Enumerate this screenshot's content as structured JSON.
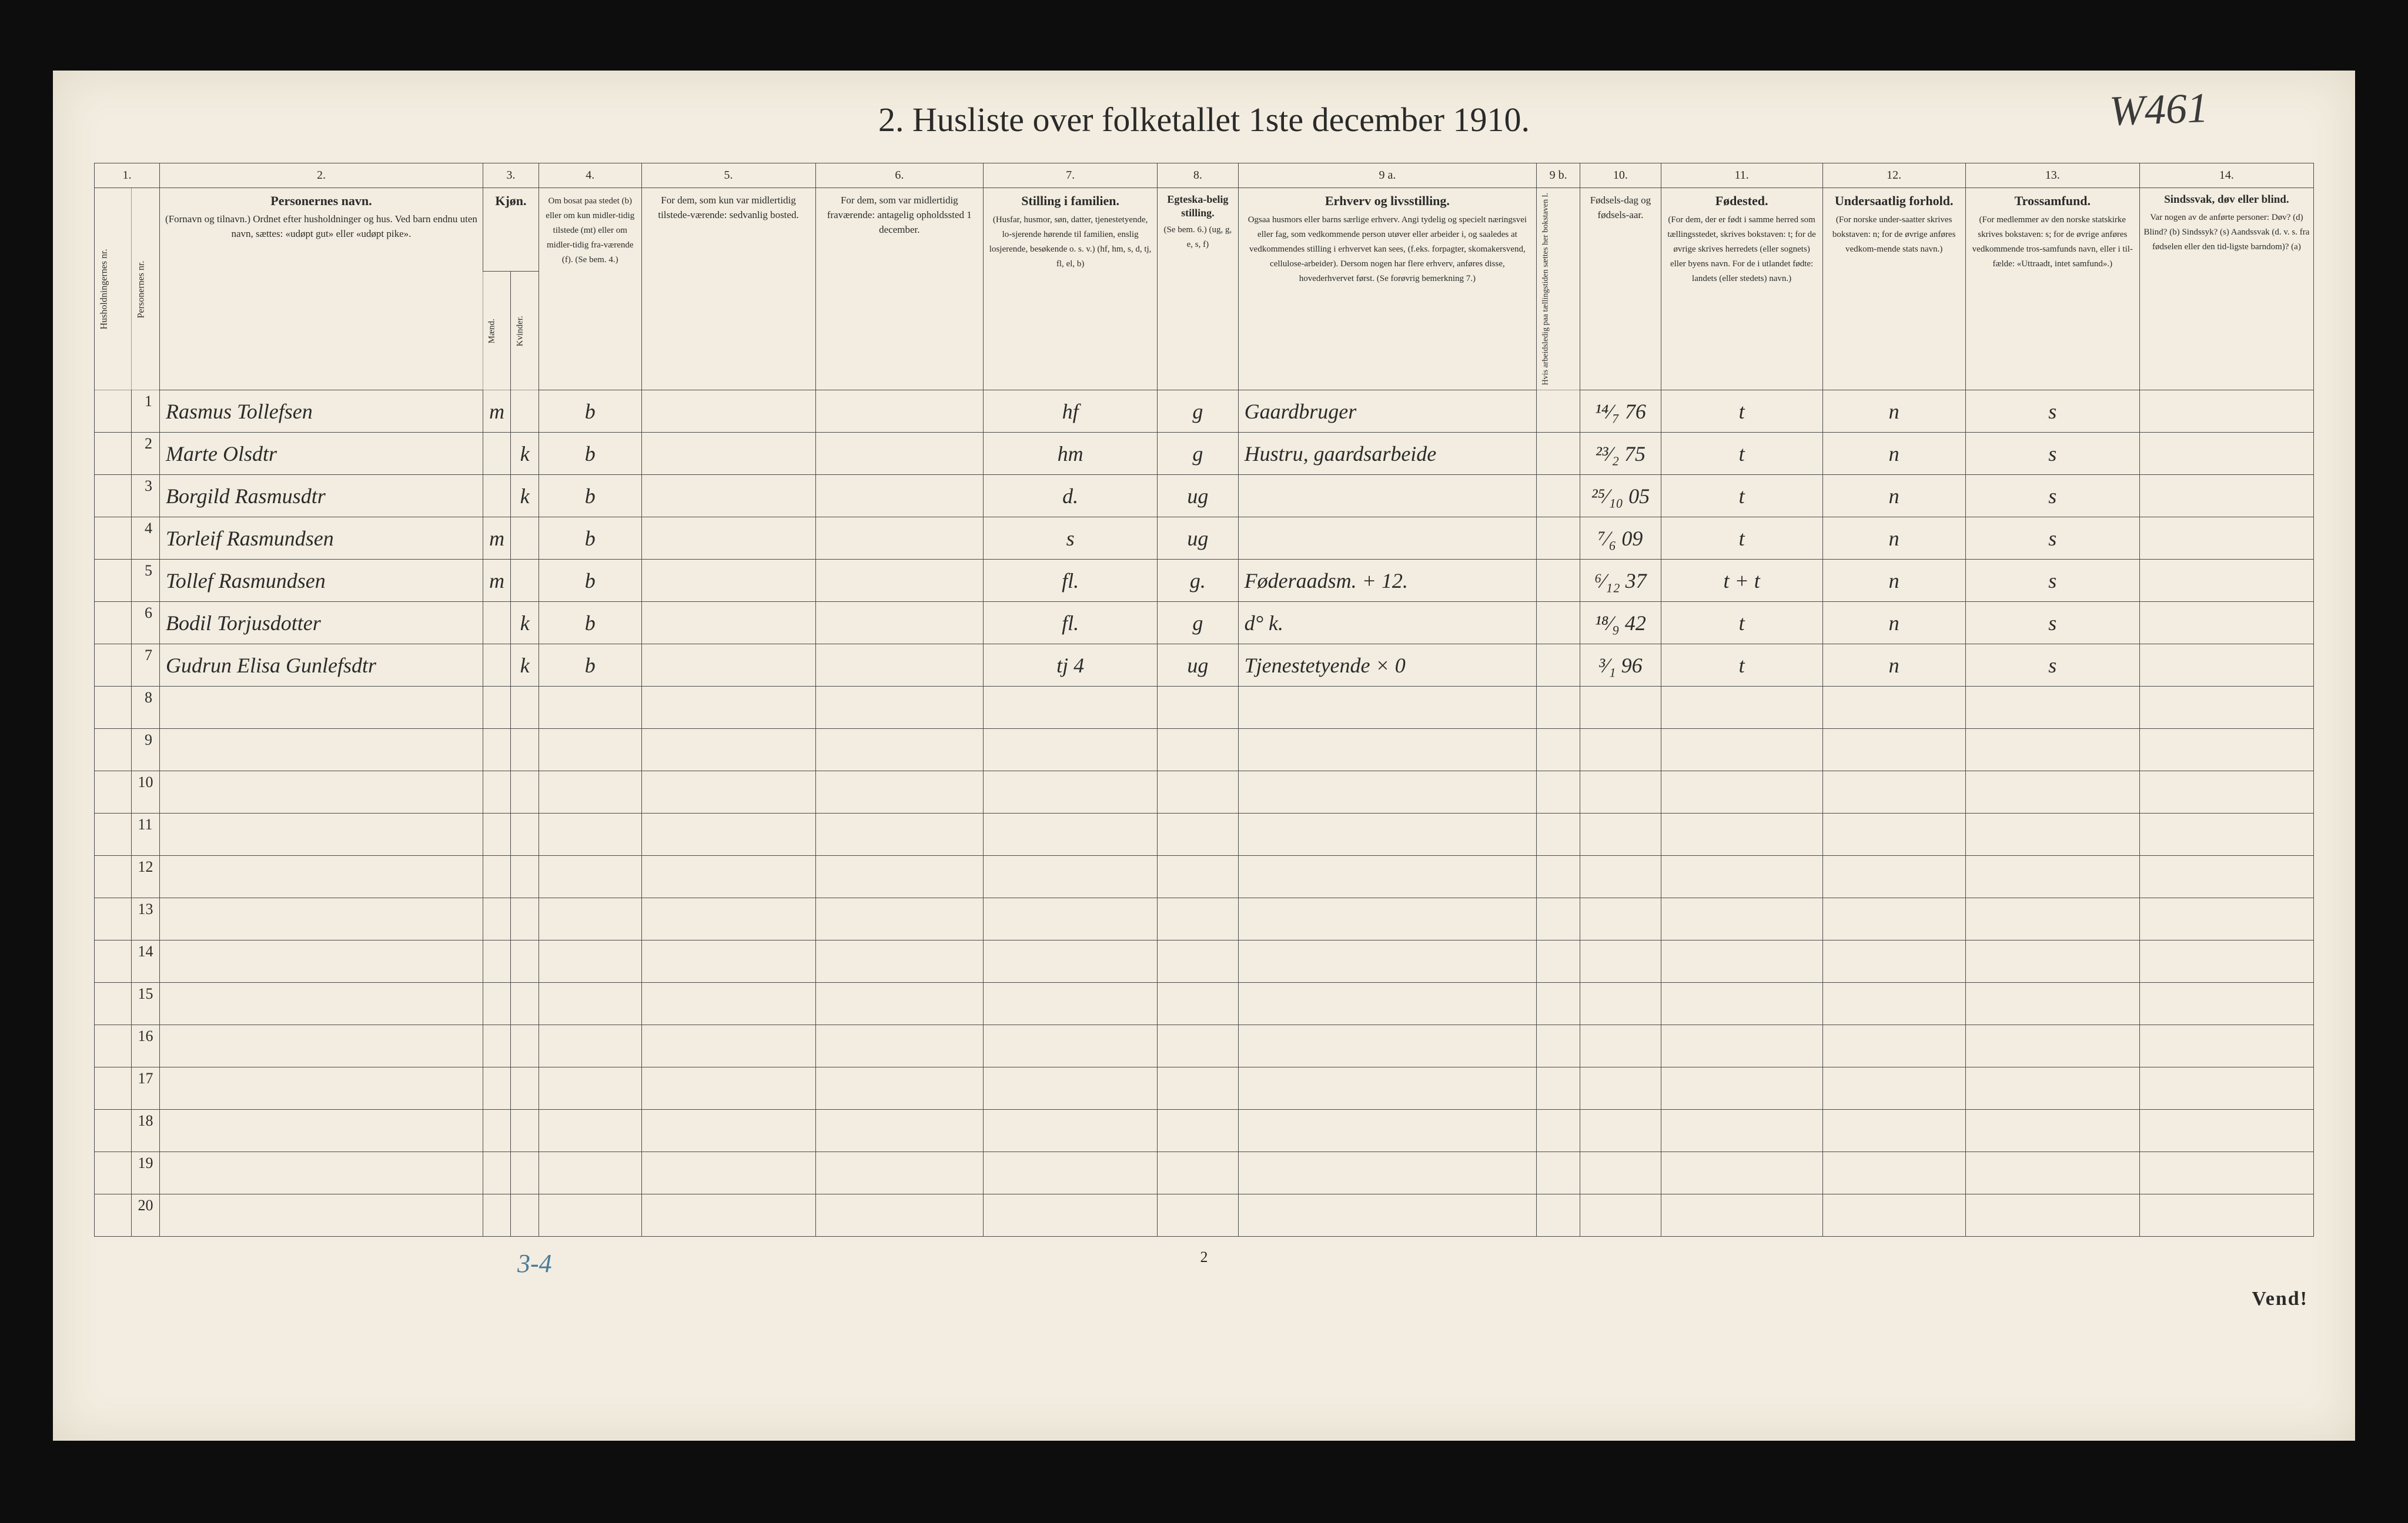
{
  "page": {
    "title": "2.  Husliste over folketallet 1ste december 1910.",
    "handwritten_ref": "W461",
    "footer_left_note": "3-4",
    "footer_pagenum": "2",
    "footer_vend": "Vend!",
    "background_color": "#f2ede0",
    "frame_color": "#0d0d0d",
    "ink_color": "#2b2b2b",
    "rule_color": "#4a4a4a",
    "blue_pencil": "#4a7a9a"
  },
  "columns": {
    "nums": [
      "1.",
      "2.",
      "3.",
      "4.",
      "5.",
      "6.",
      "7.",
      "8.",
      "9 a.",
      "9 b.",
      "10.",
      "11.",
      "12.",
      "13.",
      "14."
    ],
    "h1a": "Husholdningernes nr.",
    "h1b": "Personernes nr.",
    "h2_strong": "Personernes navn.",
    "h2": "(Fornavn og tilnavn.)\nOrdnet efter husholdninger og hus.\nVed barn endnu uten navn, sættes: «udøpt gut» eller «udøpt pike».",
    "h3_strong": "Kjøn.",
    "h3a": "Mænd.",
    "h3b": "Kvinder.",
    "h3sub": "m.  k.",
    "h4": "Om bosat paa stedet (b) eller om kun midler-tidig tilstede (mt) eller om midler-tidig fra-værende (f). (Se bem. 4.)",
    "h5": "For dem, som kun var midlertidig tilstede-værende:\nsedvanlig bosted.",
    "h6": "For dem, som var midlertidig fraværende:\nantagelig opholdssted 1 december.",
    "h7_strong": "Stilling i familien.",
    "h7": "(Husfar, husmor, søn, datter, tjenestetyende, lo-sjerende hørende til familien, enslig losjerende, besøkende o. s. v.)\n(hf, hm, s, d, tj, fl, el, b)",
    "h8_strong": "Egteska-belig stilling.",
    "h8": "(Se bem. 6.)\n(ug, g, e, s, f)",
    "h9a_strong": "Erhverv og livsstilling.",
    "h9a": "Ogsaa husmors eller barns særlige erhverv. Angi tydelig og specielt næringsvei eller fag, som vedkommende person utøver eller arbeider i, og saaledes at vedkommendes stilling i erhvervet kan sees, (f.eks. forpagter, skomakersvend, cellulose-arbeider). Dersom nogen har flere erhverv, anføres disse, hovederhvervet først. (Se forøvrig bemerkning 7.)",
    "h9b": "Hvis arbeidsledig paa tællingstiden sættes her bokstaven l.",
    "h10": "Fødsels-dag og fødsels-aar.",
    "h11_strong": "Fødested.",
    "h11": "(For dem, der er født i samme herred som tællingsstedet, skrives bokstaven: t; for de øvrige skrives herredets (eller sognets) eller byens navn. For de i utlandet fødte: landets (eller stedets) navn.)",
    "h12_strong": "Undersaatlig forhold.",
    "h12": "(For norske under-saatter skrives bokstaven: n; for de øvrige anføres vedkom-mende stats navn.)",
    "h13_strong": "Trossamfund.",
    "h13": "(For medlemmer av den norske statskirke skrives bokstaven: s; for de øvrige anføres vedkommende tros-samfunds navn, eller i til-fælde: «Uttraadt, intet samfund».)",
    "h14_strong": "Sindssvak, døv eller blind.",
    "h14": "Var nogen av de anførte personer:\nDøv? (d)\nBlind? (b)\nSindssyk? (s)\nAandssvak (d. v. s. fra fødselen eller den tid-ligste barndom)? (a)"
  },
  "rows": [
    {
      "n": "1",
      "name": "Rasmus Tollefsen",
      "m": "m",
      "k": "",
      "b": "b",
      "c5": "",
      "c6": "",
      "fam": "hf",
      "eg": "g",
      "erh": "Gaardbruger",
      "l": "",
      "dob": "¹⁴⁄₇ 76",
      "fst": "t",
      "und": "n",
      "tro": "s",
      "c14": ""
    },
    {
      "n": "2",
      "name": "Marte Olsdtr",
      "m": "",
      "k": "k",
      "b": "b",
      "c5": "",
      "c6": "",
      "fam": "hm",
      "eg": "g",
      "erh": "Hustru, gaardsarbeide",
      "l": "",
      "dob": "²³⁄₂ 75",
      "fst": "t",
      "und": "n",
      "tro": "s",
      "c14": ""
    },
    {
      "n": "3",
      "name": "Borgild Rasmusdtr",
      "m": "",
      "k": "k",
      "b": "b",
      "c5": "",
      "c6": "",
      "fam": "d.",
      "eg": "ug",
      "erh": "",
      "l": "",
      "dob": "²⁵⁄₁₀ 05",
      "fst": "t",
      "und": "n",
      "tro": "s",
      "c14": ""
    },
    {
      "n": "4",
      "name": "Torleif Rasmundsen",
      "m": "m",
      "k": "",
      "b": "b",
      "c5": "",
      "c6": "",
      "fam": "s",
      "eg": "ug",
      "erh": "",
      "l": "",
      "dob": "⁷⁄₆ 09",
      "fst": "t",
      "und": "n",
      "tro": "s",
      "c14": ""
    },
    {
      "n": "5",
      "name": "Tollef Rasmundsen",
      "m": "m",
      "k": "",
      "b": "b",
      "c5": "",
      "c6": "",
      "fam": "fl.",
      "eg": "g.",
      "erh": "Føderaadsm.        + 12.",
      "l": "",
      "dob": "⁶⁄₁₂ 37",
      "fst": "t + t",
      "und": "n",
      "tro": "s",
      "c14": ""
    },
    {
      "n": "6",
      "name": "Bodil Torjusdotter",
      "m": "",
      "k": "k",
      "b": "b",
      "c5": "",
      "c6": "",
      "fam": "fl.",
      "eg": "g",
      "erh": "   d°          k.",
      "l": "",
      "dob": "¹⁸⁄₉ 42",
      "fst": "t",
      "und": "n",
      "tro": "s",
      "c14": ""
    },
    {
      "n": "7",
      "name": "Gudrun Elisa Gunlefsdtr",
      "m": "",
      "k": "k",
      "b": "b",
      "c5": "",
      "c6": "",
      "fam": "tj        4",
      "eg": "ug",
      "erh": "Tjenestetyende        × 0",
      "l": "",
      "dob": "³⁄₁ 96",
      "fst": "t",
      "und": "n",
      "tro": "s",
      "c14": ""
    },
    {
      "n": "8"
    },
    {
      "n": "9"
    },
    {
      "n": "10"
    },
    {
      "n": "11"
    },
    {
      "n": "12"
    },
    {
      "n": "13"
    },
    {
      "n": "14"
    },
    {
      "n": "15"
    },
    {
      "n": "16"
    },
    {
      "n": "17"
    },
    {
      "n": "18"
    },
    {
      "n": "19"
    },
    {
      "n": "20"
    }
  ]
}
